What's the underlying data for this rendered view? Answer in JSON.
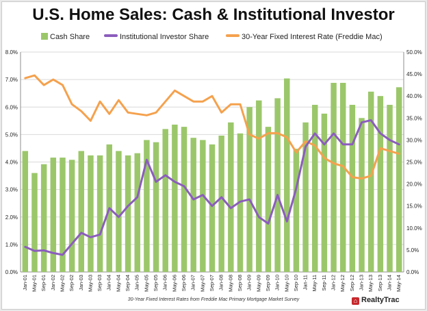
{
  "title": "U.S. Home Sales: Cash & Institutional Investor",
  "footnote": "30-Year Fixed Interest Rates from Freddie Mac Primary Mortgage Market Survey",
  "brand": "RealtyTrac",
  "colors": {
    "cash": "#9bc76a",
    "institutional": "#8b5dbd",
    "rate": "#f5a14d",
    "grid": "#d9d9d9",
    "axis": "#8c8c8c",
    "brand": "#c8282d"
  },
  "chart_data": {
    "type": "bar+line",
    "title": "U.S. Home Sales: Cash & Institutional Investor",
    "legend_position": "top",
    "grid": true,
    "x_ticks": [
      "Jan-01",
      "May-01",
      "Sep-01",
      "Jan-02",
      "May-02",
      "Sep-02",
      "Jan-03",
      "May-03",
      "Sep-03",
      "Jan-04",
      "May-04",
      "Sep-04",
      "Jan-05",
      "May-05",
      "Sep-05",
      "Jan-06",
      "May-06",
      "Sep-06",
      "Jan-07",
      "May-07",
      "Sep-07",
      "Jan-08",
      "May-08",
      "Sep-08",
      "Jan-09",
      "May-09",
      "Sep-09",
      "Jan-10",
      "May-10",
      "Sep-10",
      "Jan-11",
      "May-11",
      "Sep-11",
      "Jan-12",
      "May-12",
      "Sep-12",
      "Jan-13",
      "May-13",
      "Sep-13",
      "Jan-14",
      "May-14"
    ],
    "y_left": {
      "range": [
        0,
        8
      ],
      "ticks": [
        "0.0%",
        "1.0%",
        "2.0%",
        "3.0%",
        "4.0%",
        "5.0%",
        "6.0%",
        "7.0%",
        "8.0%"
      ],
      "tick_values": [
        0,
        1,
        2,
        3,
        4,
        5,
        6,
        7,
        8
      ]
    },
    "y_right": {
      "range": [
        0,
        50
      ],
      "ticks": [
        "0.0%",
        "5.0%",
        "10.0%",
        "15.0%",
        "20.0%",
        "25.0%",
        "30.0%",
        "35.0%",
        "40.0%",
        "45.0%",
        "50.0%"
      ],
      "tick_values": [
        0,
        5,
        10,
        15,
        20,
        25,
        30,
        35,
        40,
        45,
        50
      ]
    },
    "series": [
      {
        "name": "Cash Share",
        "kind": "bar",
        "axis": "right",
        "color": "#9bc76a",
        "x": [
          "Jan-01",
          "May-01",
          "Sep-01",
          "Jan-02",
          "May-02",
          "Sep-02",
          "Jan-03",
          "May-03",
          "Sep-03",
          "Jan-04",
          "May-04",
          "Sep-04",
          "Jan-05",
          "May-05",
          "Sep-05",
          "Jan-06",
          "May-06",
          "Sep-06",
          "Jan-07",
          "May-07",
          "Sep-07",
          "Jan-08",
          "May-08",
          "Sep-08",
          "Jan-09",
          "May-09",
          "Sep-09",
          "Jan-10",
          "May-10",
          "Sep-10",
          "Jan-11",
          "May-11",
          "Sep-11",
          "Jan-12",
          "May-12",
          "Sep-12",
          "Jan-13",
          "May-13",
          "Sep-13",
          "Jan-14",
          "May-14"
        ],
        "values": [
          27.5,
          22.5,
          24.5,
          26.0,
          26.0,
          25.5,
          27.5,
          26.5,
          26.5,
          29.0,
          27.5,
          26.5,
          27.0,
          30.0,
          29.5,
          32.5,
          33.5,
          33.0,
          30.5,
          30.0,
          29.0,
          31.0,
          34.0,
          31.5,
          37.5,
          39.0,
          33.0,
          39.5,
          44.0,
          28.0,
          34.0,
          38.0,
          36.0,
          43.0,
          43.0,
          38.0,
          35.0,
          41.0,
          40.0,
          38.0,
          42.0
        ]
      },
      {
        "name": "Institutional Investor Share",
        "kind": "line",
        "axis": "right",
        "color": "#8b5dbd",
        "x": [
          "Jan-01",
          "May-01",
          "Sep-01",
          "Jan-02",
          "May-02",
          "Sep-02",
          "Jan-03",
          "May-03",
          "Sep-03",
          "Jan-04",
          "May-04",
          "Sep-04",
          "Jan-05",
          "May-05",
          "Sep-05",
          "Jan-06",
          "May-06",
          "Sep-06",
          "Jan-07",
          "May-07",
          "Sep-07",
          "Jan-08",
          "May-08",
          "Sep-08",
          "Jan-09",
          "May-09",
          "Sep-09",
          "Jan-10",
          "May-10",
          "Sep-10",
          "Jan-11",
          "May-11",
          "Sep-11",
          "Jan-12",
          "May-12",
          "Sep-12",
          "Jan-13",
          "May-13",
          "Sep-13",
          "Jan-14",
          "May-14"
        ],
        "values": [
          5.7,
          4.8,
          4.9,
          4.3,
          3.9,
          6.4,
          8.9,
          7.9,
          8.5,
          14.5,
          12.5,
          15.0,
          17.0,
          25.5,
          20.5,
          22.0,
          20.5,
          19.5,
          16.5,
          17.5,
          15.0,
          17.0,
          14.5,
          16.0,
          16.5,
          12.5,
          11.0,
          17.5,
          11.5,
          19.0,
          28.5,
          31.5,
          29.0,
          31.5,
          29.0,
          29.0,
          34.0,
          34.5,
          31.5,
          30.0,
          29.0
        ]
      },
      {
        "name": "30-Year Fixed Interest Rate (Freddie Mac)",
        "kind": "line",
        "axis": "left",
        "color": "#f5a14d",
        "x": [
          "Jan-01",
          "May-01",
          "Sep-01",
          "Jan-02",
          "May-02",
          "Sep-02",
          "Jan-03",
          "May-03",
          "Sep-03",
          "Jan-04",
          "May-04",
          "Sep-04",
          "Jan-05",
          "May-05",
          "Sep-05",
          "Jan-06",
          "May-06",
          "Sep-06",
          "Jan-07",
          "May-07",
          "Sep-07",
          "Jan-08",
          "May-08",
          "Sep-08",
          "Jan-09",
          "May-09",
          "Sep-09",
          "Jan-10",
          "May-10",
          "Sep-10",
          "Jan-11",
          "May-11",
          "Sep-11",
          "Jan-12",
          "May-12",
          "Sep-12",
          "Jan-13",
          "May-13",
          "Sep-13",
          "Jan-14",
          "May-14"
        ],
        "values": [
          7.05,
          7.15,
          6.8,
          7.0,
          6.8,
          6.1,
          5.85,
          5.5,
          6.2,
          5.75,
          6.25,
          5.8,
          5.75,
          5.7,
          5.8,
          6.2,
          6.6,
          6.4,
          6.2,
          6.2,
          6.4,
          5.8,
          6.1,
          6.1,
          5.0,
          4.85,
          5.05,
          5.05,
          4.9,
          4.35,
          4.75,
          4.6,
          4.15,
          3.95,
          3.85,
          3.45,
          3.4,
          3.5,
          4.5,
          4.4,
          4.3
        ]
      }
    ]
  }
}
